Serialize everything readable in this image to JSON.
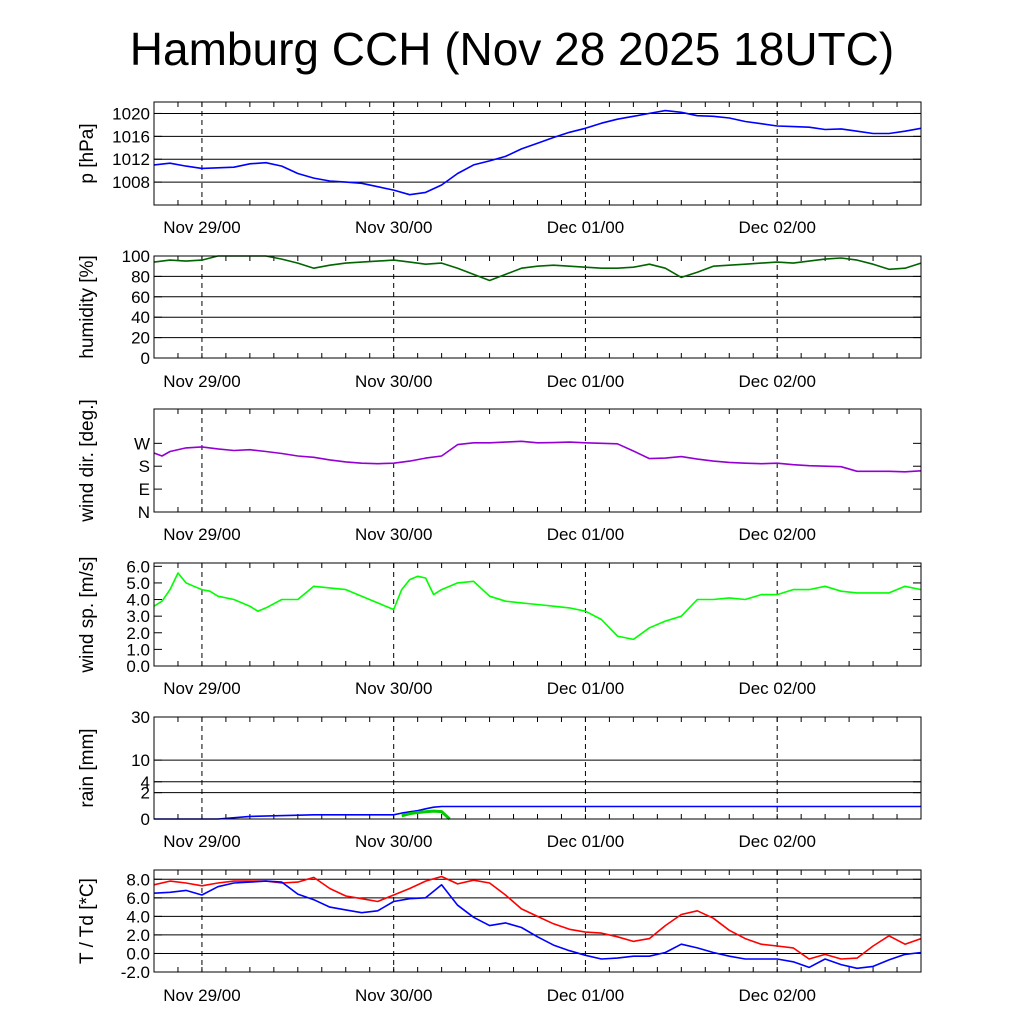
{
  "title": "Hamburg CCH (Nov 28 2025 18UTC)",
  "colors": {
    "pressure": "#0000ff",
    "humidity": "#006400",
    "wind_dir": "#9400d3",
    "wind_speed": "#00ff00",
    "rain_total": "#0000ff",
    "rain_rate": "#00cc00",
    "temperature": "#ff0000",
    "dewpoint": "#0000ff"
  },
  "chart_data": [
    {
      "id": "pressure",
      "type": "line",
      "ylabel": "p [hPa]",
      "x_unit": "hours since Nov 28 18UTC",
      "xlim": [
        0,
        96
      ],
      "ylim": [
        1004,
        1022
      ],
      "yticks": [
        {
          "v": 1008,
          "label": "1008"
        },
        {
          "v": 1012,
          "label": "1012"
        },
        {
          "v": 1016,
          "label": "1016"
        },
        {
          "v": 1020,
          "label": "1020"
        }
      ],
      "grid": true,
      "xticks": [
        {
          "v": 6,
          "label": "Nov 29/00"
        },
        {
          "v": 30,
          "label": "Nov 30/00"
        },
        {
          "v": 54,
          "label": "Dec 01/00"
        },
        {
          "v": 78,
          "label": "Dec 02/00"
        }
      ],
      "series": [
        {
          "name": "pressure",
          "color": "#0000ff",
          "x": [
            0,
            2,
            4,
            6,
            8,
            10,
            12,
            14,
            16,
            18,
            20,
            22,
            24,
            26,
            28,
            30,
            32,
            34,
            36,
            38,
            40,
            42,
            44,
            46,
            48,
            50,
            52,
            54,
            56,
            58,
            60,
            62,
            64,
            66,
            68,
            70,
            72,
            74,
            76,
            78,
            80,
            82,
            84,
            86,
            88,
            90,
            92,
            94,
            96
          ],
          "y": [
            1011.0,
            1011.3,
            1010.8,
            1010.4,
            1010.5,
            1010.6,
            1011.2,
            1011.4,
            1010.8,
            1009.5,
            1008.7,
            1008.2,
            1008.0,
            1007.8,
            1007.2,
            1006.6,
            1005.8,
            1006.2,
            1007.5,
            1009.5,
            1011.0,
            1011.7,
            1012.5,
            1013.8,
            1014.8,
            1015.8,
            1016.7,
            1017.4,
            1018.3,
            1019.0,
            1019.5,
            1020.0,
            1020.5,
            1020.2,
            1019.6,
            1019.5,
            1019.2,
            1018.6,
            1018.2,
            1017.8,
            1017.7,
            1017.6,
            1017.2,
            1017.3,
            1016.9,
            1016.5,
            1016.5,
            1016.9,
            1017.4
          ]
        }
      ]
    },
    {
      "id": "humidity",
      "type": "line",
      "ylabel": "humidity [%]",
      "xlim": [
        0,
        96
      ],
      "ylim": [
        0,
        100
      ],
      "yticks": [
        {
          "v": 0,
          "label": "0"
        },
        {
          "v": 20,
          "label": "20"
        },
        {
          "v": 40,
          "label": "40"
        },
        {
          "v": 60,
          "label": "60"
        },
        {
          "v": 80,
          "label": "80"
        },
        {
          "v": 100,
          "label": "100"
        }
      ],
      "grid": true,
      "xticks": [
        {
          "v": 6,
          "label": "Nov 29/00"
        },
        {
          "v": 30,
          "label": "Nov 30/00"
        },
        {
          "v": 54,
          "label": "Dec 01/00"
        },
        {
          "v": 78,
          "label": "Dec 02/00"
        }
      ],
      "series": [
        {
          "name": "humidity",
          "color": "#006400",
          "x": [
            0,
            2,
            4,
            6,
            8,
            10,
            12,
            14,
            16,
            18,
            20,
            22,
            24,
            26,
            28,
            30,
            32,
            34,
            36,
            38,
            40,
            42,
            44,
            46,
            48,
            50,
            52,
            54,
            56,
            58,
            60,
            62,
            64,
            66,
            68,
            70,
            72,
            74,
            76,
            78,
            80,
            82,
            84,
            86,
            88,
            90,
            92,
            94,
            96
          ],
          "y": [
            94,
            96,
            95,
            96,
            100,
            100,
            100,
            100,
            97,
            93,
            88,
            91,
            93,
            94,
            95,
            96,
            94,
            92,
            93,
            88,
            82,
            76,
            82,
            88,
            90,
            91,
            90,
            89,
            88,
            88,
            89,
            92,
            88,
            79,
            84,
            90,
            91,
            92,
            93,
            94,
            93,
            95,
            97,
            98,
            96,
            92,
            87,
            88,
            93
          ]
        }
      ]
    },
    {
      "id": "wind_dir",
      "type": "line",
      "ylabel": "wind dir. [deg.]",
      "xlim": [
        0,
        96
      ],
      "ylim": [
        0,
        405
      ],
      "yticks": [
        {
          "v": 0,
          "label": "N"
        },
        {
          "v": 90,
          "label": "E"
        },
        {
          "v": 180,
          "label": "S"
        },
        {
          "v": 270,
          "label": "W"
        }
      ],
      "grid": false,
      "xticks": [
        {
          "v": 6,
          "label": "Nov 29/00"
        },
        {
          "v": 30,
          "label": "Nov 30/00"
        },
        {
          "v": 54,
          "label": "Dec 01/00"
        },
        {
          "v": 78,
          "label": "Dec 02/00"
        }
      ],
      "series": [
        {
          "name": "wind direction",
          "color": "#9400d3",
          "x": [
            0,
            1,
            2,
            4,
            6,
            8,
            10,
            12,
            14,
            16,
            18,
            20,
            22,
            24,
            26,
            28,
            30,
            32,
            34,
            36,
            38,
            40,
            42,
            44,
            46,
            48,
            50,
            52,
            54,
            56,
            58,
            60,
            62,
            64,
            66,
            68,
            70,
            72,
            74,
            76,
            78,
            80,
            82,
            84,
            86,
            88,
            90,
            92,
            94,
            96
          ],
          "y": [
            232,
            220,
            238,
            252,
            256,
            248,
            242,
            245,
            238,
            230,
            220,
            215,
            205,
            197,
            192,
            190,
            192,
            200,
            212,
            220,
            265,
            272,
            272,
            275,
            278,
            272,
            273,
            275,
            272,
            270,
            268,
            240,
            210,
            212,
            218,
            208,
            200,
            195,
            192,
            190,
            192,
            186,
            182,
            180,
            178,
            160,
            160,
            160,
            158,
            162
          ]
        }
      ]
    },
    {
      "id": "wind_speed",
      "type": "line",
      "ylabel": "wind sp. [m/s]",
      "xlim": [
        0,
        96
      ],
      "ylim": [
        0,
        6.2
      ],
      "yticks": [
        {
          "v": 0,
          "label": "0.0"
        },
        {
          "v": 1,
          "label": "1.0"
        },
        {
          "v": 2,
          "label": "2.0"
        },
        {
          "v": 3,
          "label": "3.0"
        },
        {
          "v": 4,
          "label": "4.0"
        },
        {
          "v": 5,
          "label": "5.0"
        },
        {
          "v": 6,
          "label": "6.0"
        }
      ],
      "grid": false,
      "xticks": [
        {
          "v": 6,
          "label": "Nov 29/00"
        },
        {
          "v": 30,
          "label": "Nov 30/00"
        },
        {
          "v": 54,
          "label": "Dec 01/00"
        },
        {
          "v": 78,
          "label": "Dec 02/00"
        }
      ],
      "series": [
        {
          "name": "wind speed",
          "color": "#00ff00",
          "x": [
            0,
            1,
            2,
            3,
            4,
            5,
            6,
            7,
            8,
            10,
            12,
            13,
            14,
            16,
            18,
            20,
            22,
            24,
            26,
            28,
            29,
            30,
            31,
            32,
            33,
            34,
            35,
            36,
            38,
            40,
            42,
            44,
            46,
            48,
            50,
            52,
            54,
            56,
            58,
            60,
            62,
            64,
            66,
            68,
            70,
            72,
            74,
            76,
            78,
            80,
            82,
            84,
            86,
            88,
            90,
            92,
            94,
            96
          ],
          "y": [
            3.6,
            3.9,
            4.6,
            5.6,
            5.0,
            4.8,
            4.6,
            4.5,
            4.2,
            4.0,
            3.6,
            3.3,
            3.5,
            4.0,
            4.0,
            4.8,
            4.7,
            4.6,
            4.2,
            3.8,
            3.6,
            3.4,
            4.6,
            5.2,
            5.4,
            5.3,
            4.3,
            4.6,
            5.0,
            5.1,
            4.2,
            3.9,
            3.8,
            3.7,
            3.6,
            3.5,
            3.3,
            2.8,
            1.8,
            1.6,
            2.3,
            2.7,
            3.0,
            4.0,
            4.0,
            4.1,
            4.0,
            4.3,
            4.3,
            4.6,
            4.6,
            4.8,
            4.5,
            4.4,
            4.4,
            4.4,
            4.8,
            4.6
          ]
        }
      ]
    },
    {
      "id": "rain",
      "type": "line",
      "ylabel": "rain [mm]",
      "xlim": [
        0,
        96
      ],
      "ylim": [
        0,
        30
      ],
      "scale": "sqrt",
      "yticks": [
        {
          "v": 0,
          "label": "0"
        },
        {
          "v": 2,
          "label": "2"
        },
        {
          "v": 4,
          "label": "4"
        },
        {
          "v": 10,
          "label": "10"
        },
        {
          "v": 30,
          "label": "30"
        }
      ],
      "grid": true,
      "xticks": [
        {
          "v": 6,
          "label": "Nov 29/00"
        },
        {
          "v": 30,
          "label": "Nov 30/00"
        },
        {
          "v": 54,
          "label": "Dec 01/00"
        },
        {
          "v": 78,
          "label": "Dec 02/00"
        }
      ],
      "series": [
        {
          "name": "accumulated rain",
          "color": "#0000ff",
          "x": [
            0,
            8,
            12,
            20,
            28,
            30,
            31,
            32,
            33,
            34,
            35,
            36,
            40,
            60,
            80,
            96
          ],
          "y": [
            0,
            0,
            0.02,
            0.05,
            0.05,
            0.05,
            0.1,
            0.15,
            0.2,
            0.3,
            0.4,
            0.45,
            0.45,
            0.45,
            0.45,
            0.45
          ]
        },
        {
          "name": "rain rate",
          "color": "#00cc00",
          "x": [
            31,
            32,
            33,
            34,
            35,
            36,
            37
          ],
          "y": [
            0.03,
            0.08,
            0.12,
            0.15,
            0.18,
            0.16,
            0
          ]
        }
      ]
    },
    {
      "id": "temperature",
      "type": "line",
      "ylabel": "T / Td [*C]",
      "xlim": [
        0,
        96
      ],
      "ylim": [
        -2,
        9
      ],
      "yticks": [
        {
          "v": -2,
          "label": "-2.0"
        },
        {
          "v": 0,
          "label": "0.0"
        },
        {
          "v": 2,
          "label": "2.0"
        },
        {
          "v": 4,
          "label": "4.0"
        },
        {
          "v": 6,
          "label": "6.0"
        },
        {
          "v": 8,
          "label": "8.0"
        }
      ],
      "grid": true,
      "xticks": [
        {
          "v": 6,
          "label": "Nov 29/00"
        },
        {
          "v": 30,
          "label": "Nov 30/00"
        },
        {
          "v": 54,
          "label": "Dec 01/00"
        },
        {
          "v": 78,
          "label": "Dec 02/00"
        }
      ],
      "series": [
        {
          "name": "temperature",
          "color": "#ff0000",
          "x": [
            0,
            2,
            4,
            6,
            8,
            10,
            12,
            14,
            16,
            18,
            20,
            22,
            24,
            26,
            28,
            30,
            32,
            34,
            36,
            38,
            40,
            42,
            44,
            46,
            48,
            50,
            52,
            54,
            56,
            58,
            60,
            62,
            64,
            66,
            68,
            70,
            72,
            74,
            76,
            78,
            80,
            82,
            84,
            86,
            88,
            90,
            92,
            94,
            96
          ],
          "y": [
            7.4,
            7.8,
            7.6,
            7.3,
            7.6,
            7.8,
            7.8,
            7.8,
            7.6,
            7.7,
            8.2,
            7.0,
            6.2,
            5.9,
            5.6,
            6.3,
            7.0,
            7.8,
            8.3,
            7.5,
            7.9,
            7.6,
            6.3,
            4.8,
            4.0,
            3.2,
            2.6,
            2.3,
            2.2,
            1.8,
            1.3,
            1.6,
            3.0,
            4.2,
            4.6,
            3.8,
            2.5,
            1.6,
            1.0,
            0.8,
            0.6,
            -0.6,
            -0.1,
            -0.6,
            -0.5,
            0.8,
            1.9,
            1.0,
            1.6
          ]
        },
        {
          "name": "dewpoint",
          "color": "#0000ff",
          "x": [
            0,
            2,
            4,
            6,
            8,
            10,
            12,
            14,
            16,
            18,
            20,
            22,
            24,
            26,
            28,
            30,
            32,
            34,
            36,
            38,
            40,
            42,
            44,
            46,
            48,
            50,
            52,
            54,
            56,
            58,
            60,
            62,
            64,
            66,
            68,
            70,
            72,
            74,
            76,
            78,
            80,
            82,
            84,
            86,
            88,
            90,
            92,
            94,
            96
          ],
          "y": [
            6.5,
            6.6,
            6.8,
            6.3,
            7.2,
            7.6,
            7.7,
            7.8,
            7.7,
            6.4,
            5.8,
            5.0,
            4.7,
            4.4,
            4.6,
            5.6,
            5.9,
            6.0,
            7.4,
            5.2,
            3.9,
            3.0,
            3.3,
            2.8,
            1.8,
            0.9,
            0.3,
            -0.2,
            -0.6,
            -0.5,
            -0.3,
            -0.3,
            0.1,
            1.0,
            0.6,
            0.1,
            -0.3,
            -0.6,
            -0.6,
            -0.6,
            -0.9,
            -1.5,
            -0.6,
            -1.2,
            -1.6,
            -1.4,
            -0.7,
            -0.1,
            0.1
          ]
        }
      ]
    }
  ]
}
